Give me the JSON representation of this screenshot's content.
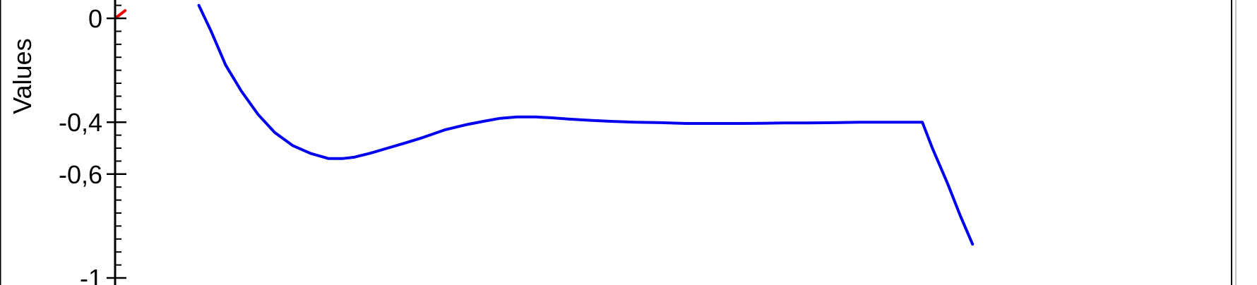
{
  "chart_data": {
    "type": "line",
    "ylabel": "Values",
    "ylim": [
      -1.01,
      0.05
    ],
    "yticks": [
      0,
      -0.4,
      -0.6,
      -1
    ],
    "ytick_labels": [
      "0",
      "-0,4",
      "-0,6",
      "-1"
    ],
    "xlim": [
      0,
      100
    ],
    "minor_step": 0.05,
    "colors": {
      "blue": "#0000ee",
      "red": "#ee0000",
      "axis": "#000000",
      "frame": "#000000"
    },
    "series": [
      {
        "color": "#0000ee",
        "x": [
          7.5,
          8.6,
          9.9,
          11.3,
          12.8,
          14.3,
          15.9,
          17.5,
          19.1,
          20.4,
          21.4,
          22.8,
          24.4,
          26.0,
          27.5,
          29.5,
          31.4,
          33.2,
          34.5,
          36.0,
          37.7,
          39.0,
          40.6,
          42.6,
          44.6,
          46.6,
          48.9,
          51.1,
          53.6,
          56.1,
          58.0,
          59.9,
          62.1,
          64.4,
          66.7,
          69.2,
          71.0,
          72.3,
          73.2,
          74.6,
          75.7,
          76.8
        ],
        "y": [
          0.05,
          -0.05,
          -0.18,
          -0.28,
          -0.37,
          -0.44,
          -0.49,
          -0.52,
          -0.54,
          -0.54,
          -0.535,
          -0.52,
          -0.5,
          -0.48,
          -0.46,
          -0.43,
          -0.41,
          -0.395,
          -0.385,
          -0.38,
          -0.38,
          -0.383,
          -0.388,
          -0.393,
          -0.397,
          -0.4,
          -0.402,
          -0.405,
          -0.405,
          -0.405,
          -0.404,
          -0.403,
          -0.403,
          -0.402,
          -0.4,
          -0.4,
          -0.4,
          -0.4,
          -0.5,
          -0.64,
          -0.76,
          -0.87
        ]
      },
      {
        "color": "#ee0000",
        "x": [
          0.0,
          0.9
        ],
        "y": [
          0.0,
          0.03
        ]
      }
    ]
  }
}
